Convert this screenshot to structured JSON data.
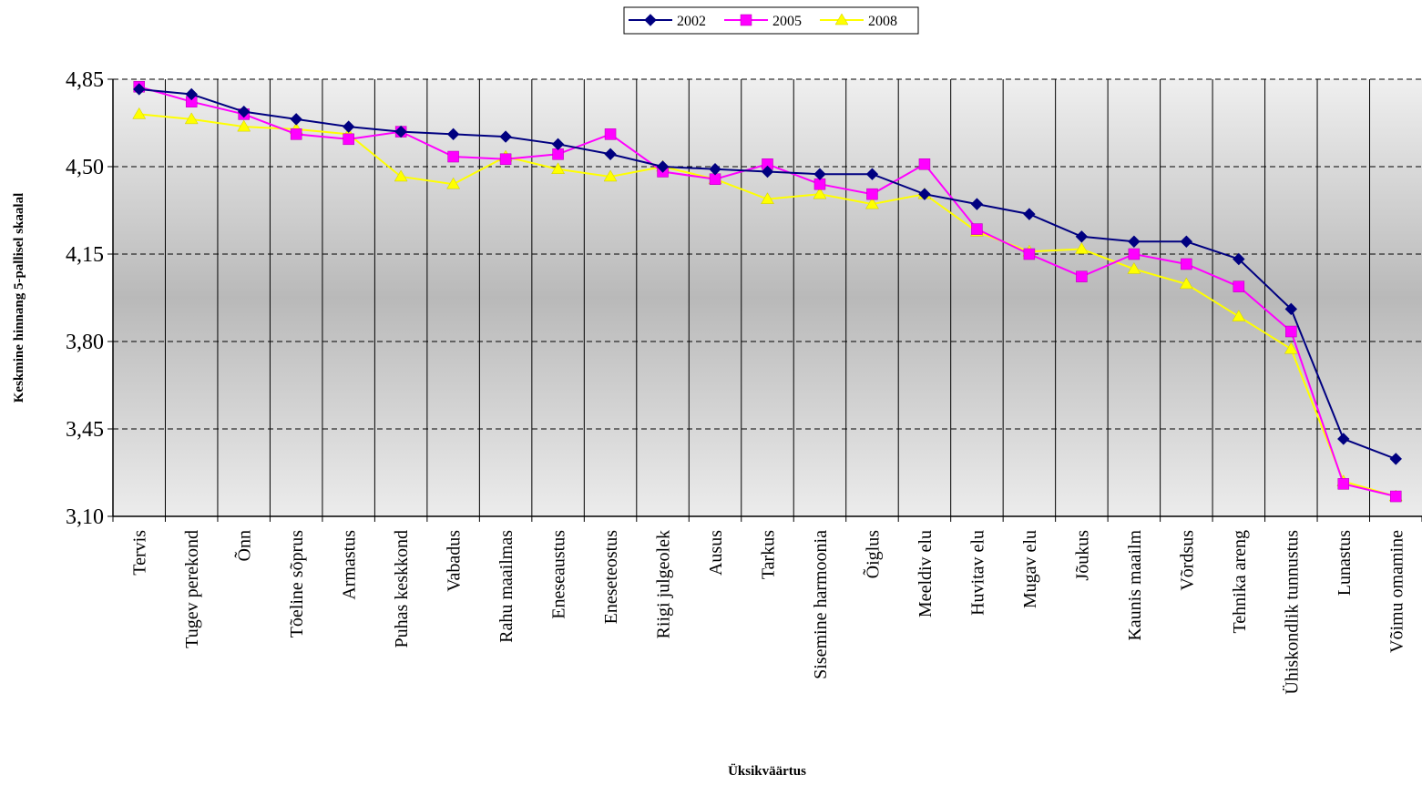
{
  "chart_data": {
    "type": "line",
    "title": "",
    "xlabel": "Üksikväärtus",
    "ylabel": "Keskmine hinnang 5-pallisel skaalal",
    "ylim": [
      3.1,
      4.85
    ],
    "yticks": [
      "3,10",
      "3,45",
      "3,80",
      "4,15",
      "4,50",
      "4,85"
    ],
    "ytick_values": [
      3.1,
      3.45,
      3.8,
      4.15,
      4.5,
      4.85
    ],
    "grid": "horizontal dashed and vertical solid lines",
    "legend_position": "top-center",
    "categories": [
      "Tervis",
      "Tugev perekond",
      "Õnn",
      "Tõeline sõprus",
      "Armastus",
      "Puhas keskkond",
      "Vabadus",
      "Rahu maailmas",
      "Eneseaustus",
      "Eneseteostus",
      "Riigi julgeolek",
      "Ausus",
      "Tarkus",
      "Sisemine harmoonia",
      "Õiglus",
      "Meeldiv elu",
      "Huvitav elu",
      "Mugav elu",
      "Jõukus",
      "Kaunis maailm",
      "Võrdsus",
      "Tehnika areng",
      "Ühiskondlik tunnustus",
      "Lunastus",
      "Võimu omamine"
    ],
    "series": [
      {
        "name": "2002",
        "color": "#000080",
        "marker": "diamond",
        "values": [
          4.81,
          4.79,
          4.72,
          4.69,
          4.66,
          4.64,
          4.63,
          4.62,
          4.59,
          4.55,
          4.5,
          4.49,
          4.48,
          4.47,
          4.47,
          4.39,
          4.35,
          4.31,
          4.22,
          4.2,
          4.2,
          4.13,
          3.93,
          3.41,
          3.33
        ]
      },
      {
        "name": "2005",
        "color": "#FF00FF",
        "marker": "square",
        "values": [
          4.82,
          4.76,
          4.71,
          4.63,
          4.61,
          4.64,
          4.54,
          4.53,
          4.55,
          4.63,
          4.48,
          4.45,
          4.51,
          4.43,
          4.39,
          4.51,
          4.25,
          4.15,
          4.06,
          4.15,
          4.11,
          4.02,
          3.84,
          3.23,
          3.18
        ]
      },
      {
        "name": "2008",
        "color": "#FFFF00",
        "marker": "triangle",
        "values": [
          4.71,
          4.69,
          4.66,
          4.65,
          4.63,
          4.46,
          4.43,
          4.54,
          4.49,
          4.46,
          4.5,
          4.45,
          4.37,
          4.39,
          4.35,
          4.39,
          4.24,
          4.16,
          4.17,
          4.09,
          4.03,
          3.9,
          3.77,
          3.24,
          3.18
        ]
      }
    ]
  }
}
